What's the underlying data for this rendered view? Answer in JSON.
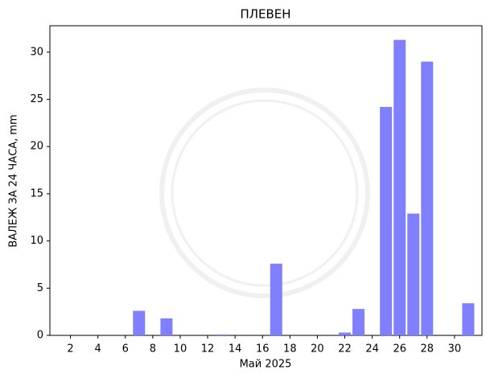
{
  "chart_data": {
    "type": "bar",
    "title": "ПЛЕВЕН",
    "x_label": "Май  2025",
    "y_label": "ВАЛЕЖ ЗА 24 ЧАСА,  mm",
    "x": [
      7,
      9,
      13,
      17,
      22,
      23,
      25,
      26,
      27,
      28,
      31
    ],
    "values": [
      2.6,
      1.8,
      0.1,
      7.6,
      0.3,
      2.8,
      24.2,
      31.3,
      12.9,
      29.0,
      3.4
    ],
    "color": "#8080ff",
    "xlim": [
      0.5,
      32
    ],
    "xticks": [
      2,
      4,
      6,
      8,
      10,
      12,
      14,
      16,
      18,
      20,
      22,
      24,
      26,
      28,
      30
    ],
    "ylim": [
      0,
      32.8
    ],
    "yticks": [
      0,
      5,
      10,
      15,
      20,
      25,
      30
    ]
  }
}
